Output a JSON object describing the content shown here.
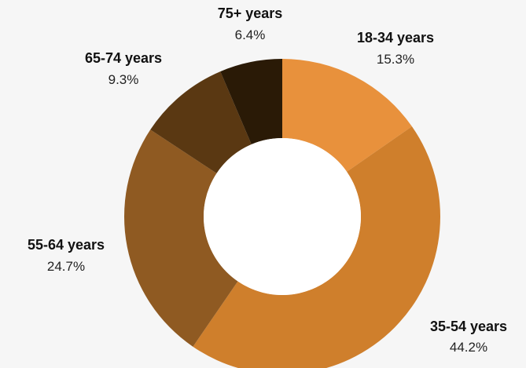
{
  "chart_data": {
    "type": "pie",
    "variant": "donut",
    "title": "",
    "slices": [
      {
        "label": "18-34 years",
        "value": 15.3,
        "value_label": "15.3%",
        "color": "#e8913c"
      },
      {
        "label": "35-54 years",
        "value": 44.2,
        "value_label": "44.2%",
        "color": "#cf7f2c"
      },
      {
        "label": "55-64 years",
        "value": 24.7,
        "value_label": "24.7%",
        "color": "#8f5a22"
      },
      {
        "label": "65-74 years",
        "value": 9.3,
        "value_label": "9.3%",
        "color": "#5a3812"
      },
      {
        "label": "75+ years",
        "value": 6.4,
        "value_label": "6.4%",
        "color": "#2a1a06"
      }
    ],
    "start_angle": "12 o'clock",
    "direction": "clockwise",
    "legend": "none"
  }
}
